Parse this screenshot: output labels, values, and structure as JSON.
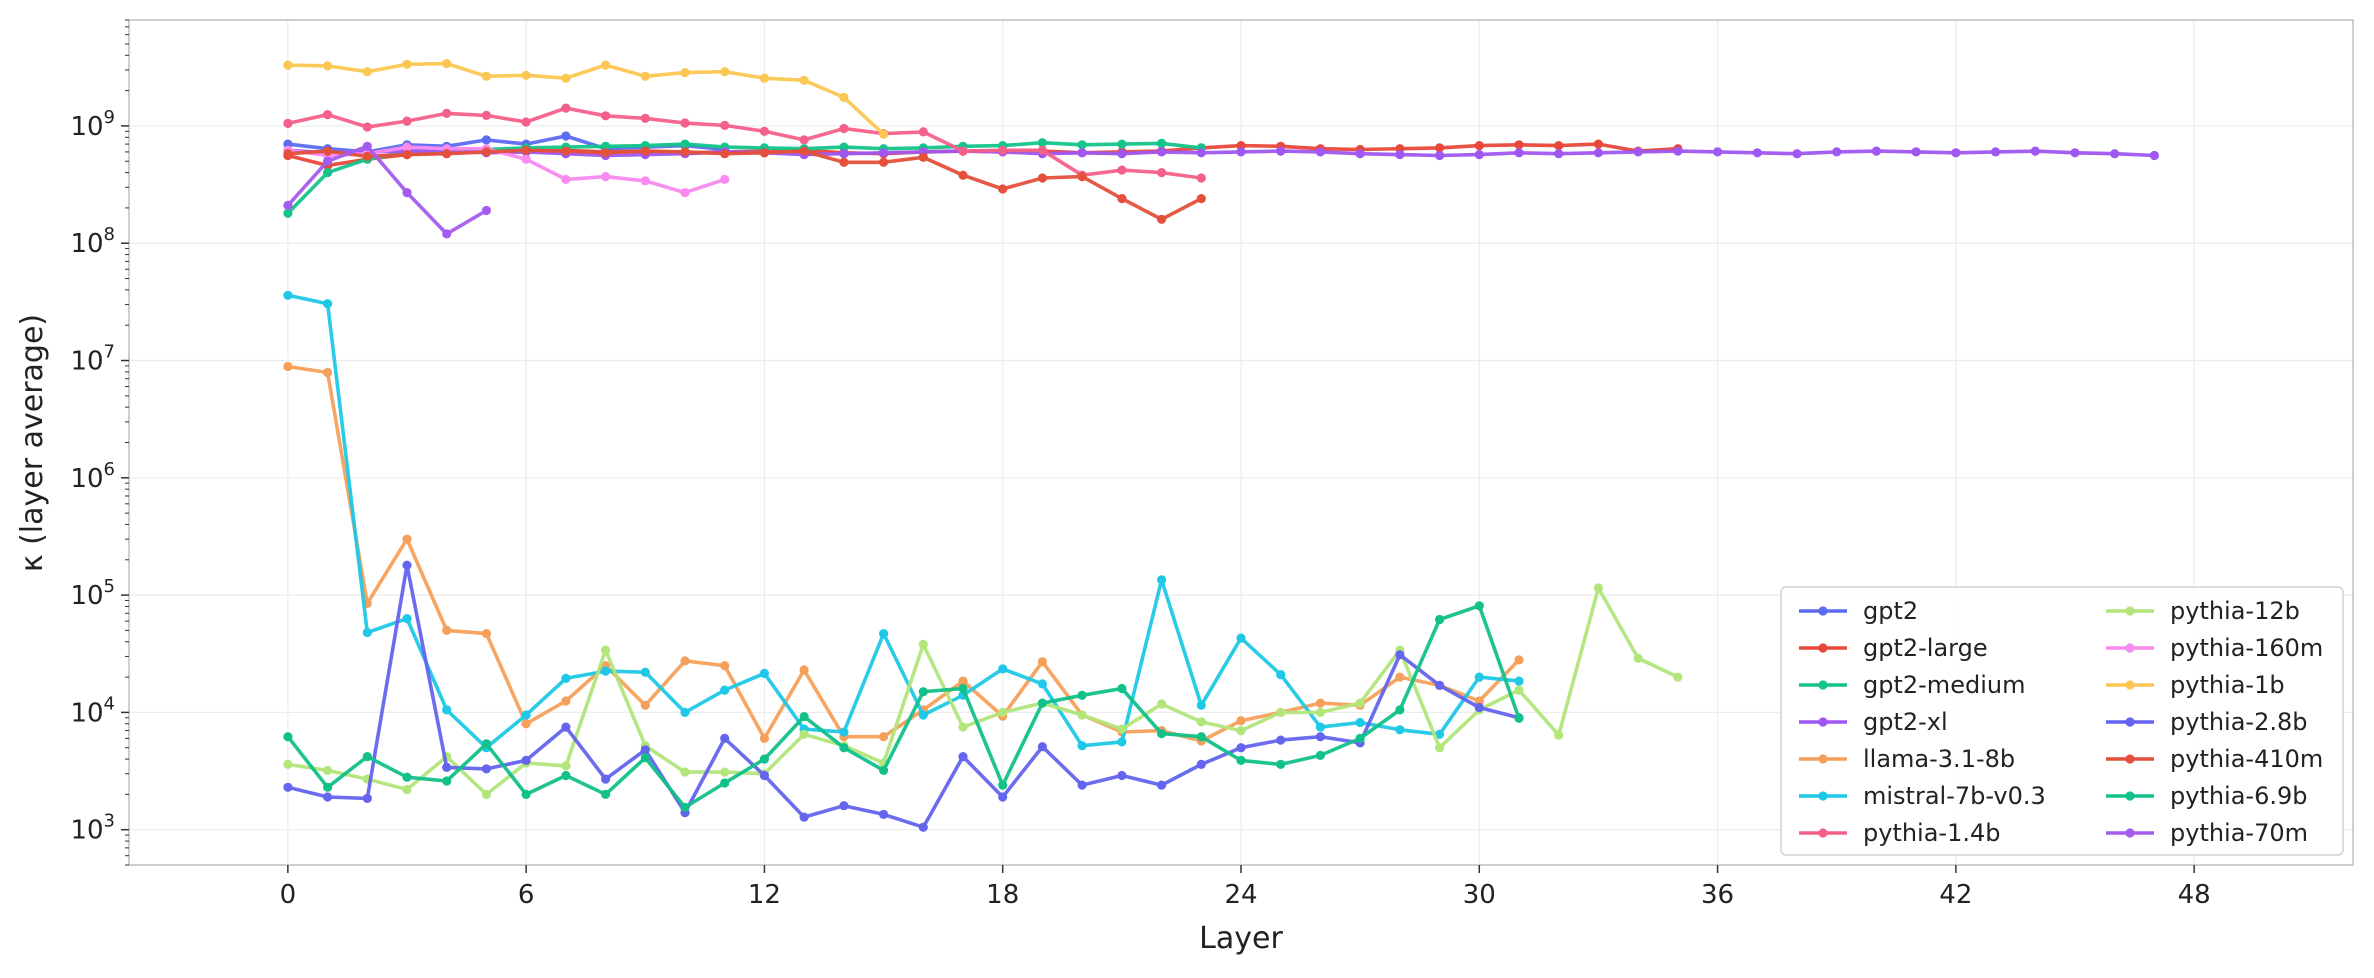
{
  "chart_data": {
    "type": "line",
    "xlabel": "Layer",
    "ylabel": "κ (layer average)",
    "yscale": "log",
    "xlim": [
      -4,
      52
    ],
    "ylim": [
      500,
      8000000000
    ],
    "xticks": [
      0,
      6,
      12,
      18,
      24,
      30,
      36,
      42,
      48
    ],
    "yticks": [
      1000,
      10000,
      100000,
      1000000,
      10000000,
      100000000,
      1000000000
    ],
    "ytick_labels": [
      {
        "base": "10",
        "exp": "3"
      },
      {
        "base": "10",
        "exp": "4"
      },
      {
        "base": "10",
        "exp": "5"
      },
      {
        "base": "10",
        "exp": "6"
      },
      {
        "base": "10",
        "exp": "7"
      },
      {
        "base": "10",
        "exp": "8"
      },
      {
        "base": "10",
        "exp": "9"
      }
    ],
    "grid": true,
    "legend_position": "lower-right",
    "series": [
      {
        "name": "gpt2",
        "color": "#5b6cf0",
        "values": [
          700000000,
          640000000,
          600000000,
          690000000,
          670000000,
          760000000,
          700000000,
          820000000,
          640000000,
          660000000,
          680000000,
          630000000
        ]
      },
      {
        "name": "gpt2-large",
        "color": "#e8483a",
        "values": [
          560000000,
          460000000,
          520000000,
          570000000,
          590000000,
          600000000,
          610000000,
          620000000,
          600000000,
          610000000,
          590000000,
          600000000,
          610000000,
          620000000,
          590000000,
          580000000,
          600000000,
          610000000,
          600000000,
          610000000,
          590000000,
          600000000,
          610000000,
          650000000,
          680000000,
          670000000,
          640000000,
          630000000,
          640000000,
          650000000,
          680000000,
          690000000,
          680000000,
          700000000,
          610000000,
          640000000
        ]
      },
      {
        "name": "gpt2-medium",
        "color": "#14c48a",
        "values": [
          180000000,
          400000000,
          520000000,
          600000000,
          620000000,
          630000000,
          650000000,
          660000000,
          670000000,
          680000000,
          700000000,
          660000000,
          650000000,
          640000000,
          660000000,
          640000000,
          650000000,
          670000000,
          680000000,
          720000000,
          690000000,
          700000000,
          710000000,
          650000000
        ]
      },
      {
        "name": "gpt2-xl",
        "color": "#a056f0",
        "values": [
          620000000,
          590000000,
          600000000,
          610000000,
          620000000,
          590000000,
          600000000,
          580000000,
          560000000,
          570000000,
          580000000,
          600000000,
          590000000,
          570000000,
          580000000,
          590000000,
          600000000,
          610000000,
          600000000,
          580000000,
          590000000,
          580000000,
          600000000,
          590000000,
          600000000,
          610000000,
          600000000,
          580000000,
          570000000,
          560000000,
          570000000,
          590000000,
          580000000,
          590000000,
          600000000,
          610000000,
          600000000,
          590000000,
          580000000,
          600000000,
          610000000,
          600000000,
          590000000,
          600000000,
          610000000,
          590000000,
          580000000,
          560000000
        ]
      },
      {
        "name": "llama-3.1-8b",
        "color": "#f5a05a",
        "values": [
          8900000,
          7900000,
          85000,
          300000,
          50000,
          47000,
          8000,
          12500,
          25000,
          11500,
          27500,
          25000,
          6000,
          23000,
          6200,
          6200,
          10500,
          18500,
          9300,
          27000,
          9500,
          6800,
          7000,
          5700,
          8500,
          10000,
          12000,
          11500,
          20000,
          17000,
          12500,
          28000
        ]
      },
      {
        "name": "mistral-7b-v0.3",
        "color": "#1ec8e6",
        "values": [
          36000000,
          30500000,
          48000,
          63000,
          10500,
          5000,
          9500,
          19500,
          22500,
          22000,
          10000,
          15500,
          21500,
          7200,
          6800,
          47000,
          9500,
          14000,
          23500,
          17500,
          5200,
          5600,
          135000,
          11500,
          43000,
          21000,
          7500,
          8200,
          7100,
          6500,
          20000,
          18500
        ]
      },
      {
        "name": "pythia-1.4b",
        "color": "#f4608a",
        "values": [
          1050000000,
          1250000000,
          980000000,
          1100000000,
          1280000000,
          1230000000,
          1080000000,
          1420000000,
          1220000000,
          1160000000,
          1060000000,
          1010000000,
          900000000,
          760000000,
          950000000,
          860000000,
          890000000,
          610000000,
          620000000,
          620000000,
          380000000,
          420000000,
          400000000,
          360000000
        ]
      },
      {
        "name": "pythia-12b",
        "color": "#b2e57a",
        "values": [
          3600,
          3200,
          2700,
          2200,
          4200,
          2000,
          3700,
          3500,
          34000,
          5200,
          3100,
          3100,
          3000,
          6500,
          5200,
          3700,
          38000,
          7500,
          10000,
          12000,
          9500,
          7200,
          11800,
          8300,
          7000,
          10000,
          10000,
          12000,
          34000,
          5000,
          10500,
          15500,
          6400,
          115000,
          29000,
          20000
        ]
      },
      {
        "name": "pythia-160m",
        "color": "#f88af0",
        "values": [
          620000000,
          560000000,
          580000000,
          660000000,
          640000000,
          640000000,
          520000000,
          350000000,
          370000000,
          340000000,
          270000000,
          350000000
        ]
      },
      {
        "name": "pythia-1b",
        "color": "#fcc652",
        "values": [
          3300000000,
          3250000000,
          2900000000,
          3350000000,
          3400000000,
          2650000000,
          2700000000,
          2550000000,
          3300000000,
          2650000000,
          2850000000,
          2900000000,
          2550000000,
          2450000000,
          1750000000,
          850000000
        ]
      },
      {
        "name": "pythia-2.8b",
        "color": "#6464ee",
        "values": [
          2300,
          1900,
          1850,
          180000,
          3400,
          3300,
          3900,
          7500,
          2700,
          4800,
          1400,
          6000,
          2900,
          1280,
          1600,
          1350,
          1050,
          4200,
          1900,
          5100,
          2400,
          2900,
          2400,
          3600,
          5000,
          5800,
          6200,
          5500,
          31000,
          17000,
          11000,
          9000
        ]
      },
      {
        "name": "pythia-410m",
        "color": "#e4503c",
        "values": [
          580000000,
          610000000,
          550000000,
          570000000,
          580000000,
          600000000,
          620000000,
          610000000,
          590000000,
          610000000,
          600000000,
          580000000,
          590000000,
          610000000,
          490000000,
          490000000,
          540000000,
          380000000,
          290000000,
          360000000,
          370000000,
          240000000,
          160000000,
          240000000
        ]
      },
      {
        "name": "pythia-6.9b",
        "color": "#12c08a",
        "values": [
          6200,
          2300,
          4200,
          2800,
          2600,
          5400,
          2000,
          2900,
          2000,
          4100,
          1550,
          2500,
          4000,
          9200,
          5000,
          3200,
          15000,
          16000,
          2400,
          12000,
          14000,
          16000,
          6600,
          6200,
          3900,
          3600,
          4300,
          6000,
          10500,
          62000,
          81000,
          8900
        ]
      },
      {
        "name": "pythia-70m",
        "color": "#a55cee",
        "values": [
          210000000,
          500000000,
          670000000,
          270000000,
          120000000,
          190000000
        ]
      }
    ]
  }
}
